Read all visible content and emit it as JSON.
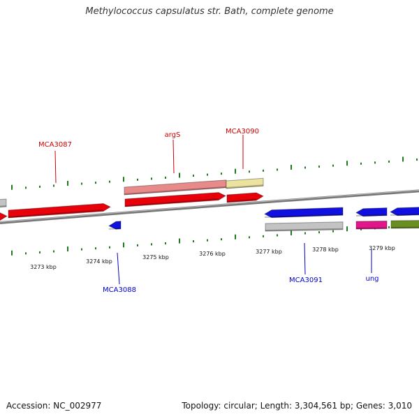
{
  "title": "Methylococcus capsulatus str. Bath, complete genome",
  "footer": {
    "accession": "Accession: NC_002977",
    "summary": "Topology: circular; Length: 3,304,561 bp; Genes: 3,010"
  },
  "colors": {
    "backbone": "#8c8c8c",
    "tick": "#1f7a1f",
    "label_forward": "#cc0000",
    "label_reverse": "#0000cc",
    "red": "#e8000b",
    "pink": "#e88a8a",
    "khaki": "#ece3a0",
    "gray": "#c3c3c3",
    "blue": "#1010e0",
    "magenta": "#e0168a",
    "olive": "#6b8e23"
  },
  "kbp_labels": [
    "3273 kbp",
    "3274 kbp",
    "3275 kbp",
    "3276 kbp",
    "3277 kbp",
    "3278 kbp",
    "3279 kbp"
  ],
  "gene_labels": {
    "forward": [
      "MCA3087",
      "argS",
      "MCA3090"
    ],
    "reverse": [
      "MCA3088",
      "MCA3091",
      "ung"
    ]
  }
}
